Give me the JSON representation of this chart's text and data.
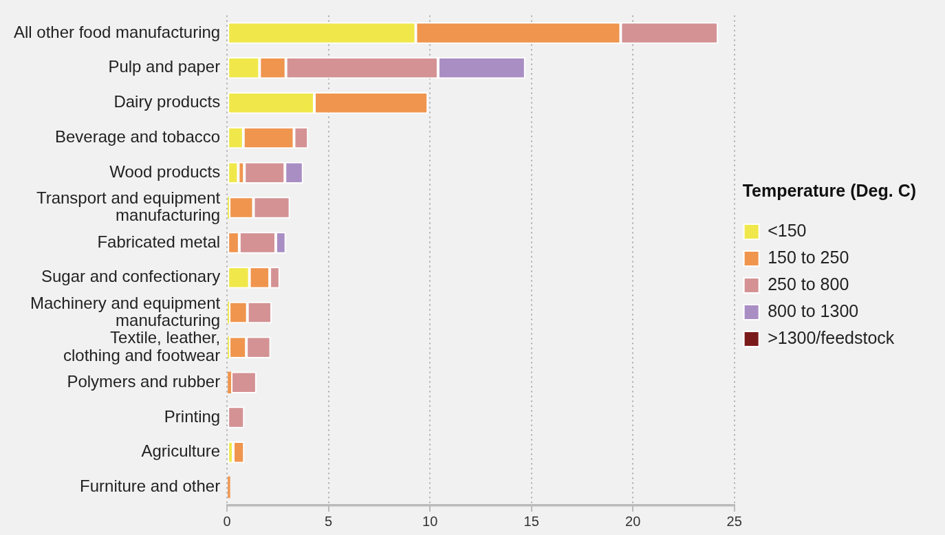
{
  "chart_data": {
    "type": "bar",
    "orientation": "horizontal",
    "stacked": true,
    "legend_title": "Temperature (Deg. C)",
    "legend": "right",
    "grid": "x",
    "categories": [
      "All other food manufacturing",
      "Pulp and paper",
      "Dairy products",
      "Beverage and tobacco",
      "Wood products",
      "Transport and equipment manufacturing",
      "Fabricated metal",
      "Sugar and confectionary",
      "Machinery and equipment manufacturing",
      "Textile, leather, clothing and footwear",
      "Polymers and rubber",
      "Printing",
      "Agriculture",
      "Furniture and other"
    ],
    "series": [
      {
        "name": "<150",
        "color": "#f0e84a",
        "values": [
          9.3,
          1.6,
          4.3,
          0.8,
          0.55,
          0.1,
          null,
          1.1,
          0.1,
          0.1,
          null,
          null,
          0.3,
          null
        ]
      },
      {
        "name": "150 to 250",
        "color": "#f0954e",
        "values": [
          10.1,
          1.3,
          5.6,
          2.5,
          0.3,
          1.2,
          0.6,
          1.0,
          0.9,
          0.85,
          0.2,
          null,
          0.55,
          0.15
        ]
      },
      {
        "name": "250 to 800",
        "color": "#d49294",
        "values": [
          4.8,
          7.5,
          null,
          0.7,
          2.0,
          1.8,
          1.8,
          0.5,
          1.2,
          1.2,
          1.25,
          0.85,
          null,
          null
        ]
      },
      {
        "name": "800 to 1300",
        "color": "#a98ec4",
        "values": [
          null,
          4.3,
          null,
          null,
          0.9,
          null,
          0.5,
          null,
          null,
          null,
          null,
          null,
          null,
          null
        ]
      },
      {
        "name": ">1300/feedstock",
        "color": "#7b1a1a",
        "values": [
          null,
          null,
          null,
          null,
          null,
          null,
          null,
          null,
          null,
          null,
          null,
          null,
          null,
          null
        ]
      }
    ],
    "xlim": [
      0,
      25
    ],
    "xticks": [
      0,
      5,
      10,
      15,
      20,
      25
    ]
  }
}
